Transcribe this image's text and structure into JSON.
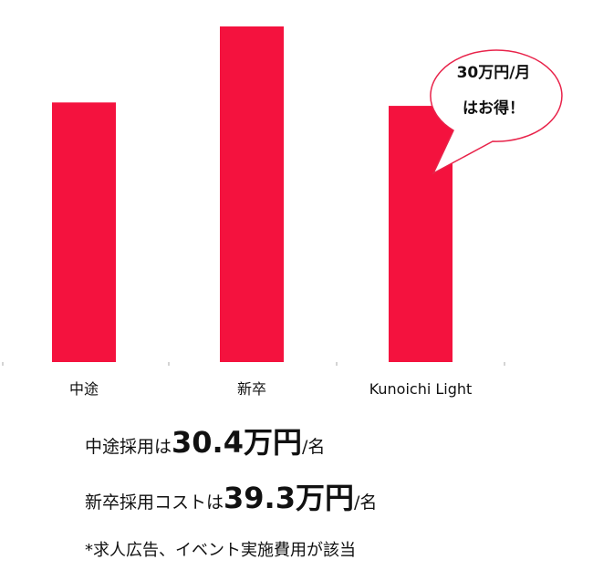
{
  "chart_data": {
    "type": "bar",
    "categories": [
      "中途",
      "新卒",
      "Kunoichi Light"
    ],
    "values": [
      30.4,
      39.3,
      30
    ],
    "color": "#f4123e",
    "annotation": [
      "30万円/月",
      "はお得！"
    ]
  },
  "notes": [
    {
      "prefix": "中途採用は",
      "amount": "30.4万円",
      "suffix": "/名"
    },
    {
      "prefix": "新卒採用コストは",
      "amount": "39.3万円",
      "suffix": "/名"
    }
  ],
  "footnote": "*求人広告、イベント実施費用が該当"
}
